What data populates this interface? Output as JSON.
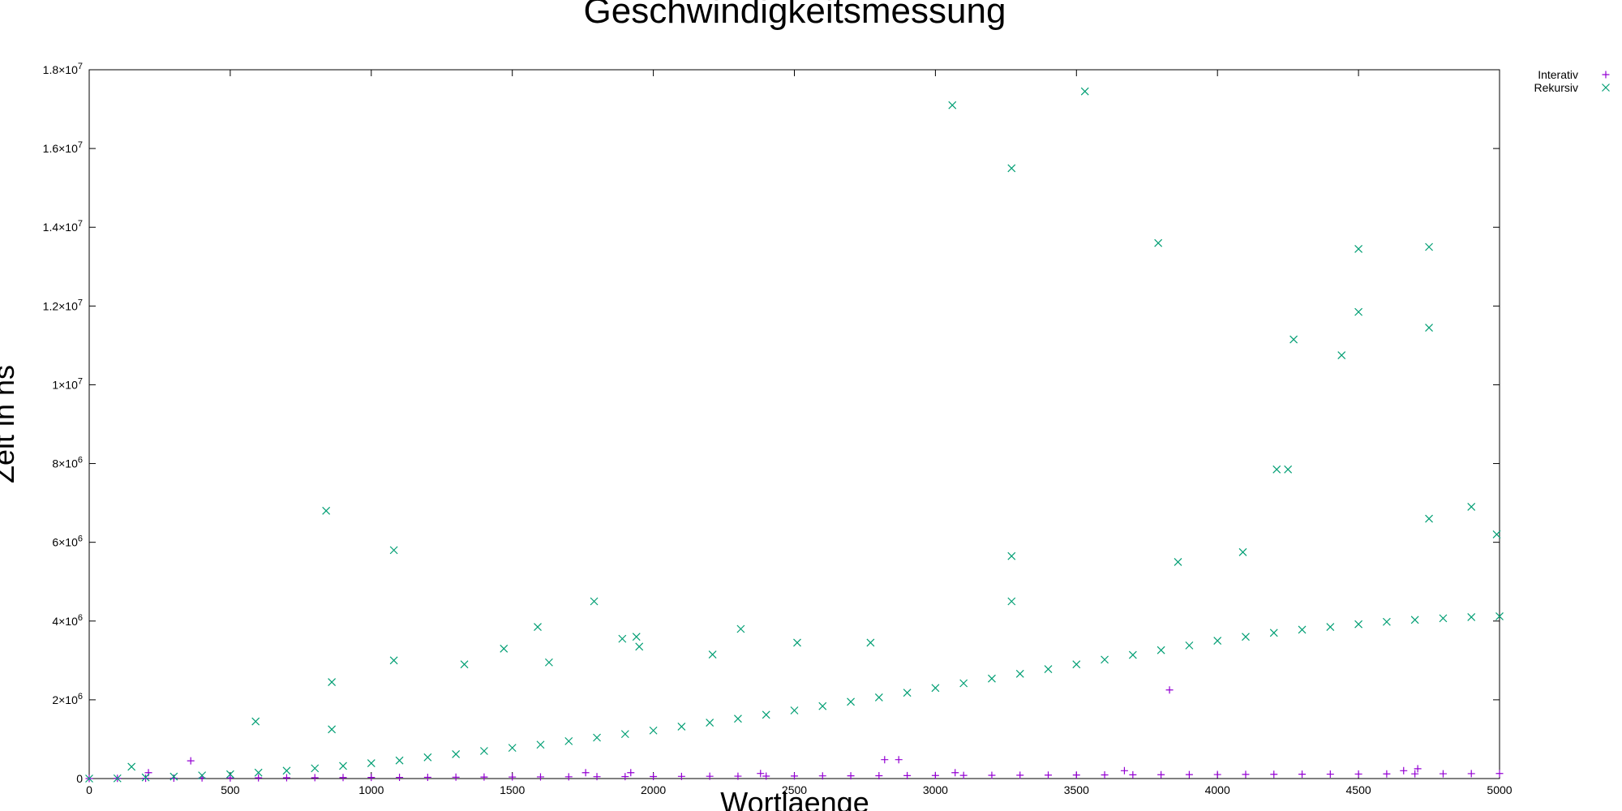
{
  "chart_data": {
    "type": "scatter",
    "title": "Geschwindigkeitsmessung",
    "xlabel": "Wortlaenge",
    "ylabel": "Zeit in ns",
    "xlim": [
      0,
      5000
    ],
    "ylim": [
      0,
      18000000
    ],
    "grid": false,
    "legend_position": "top-right-outside",
    "x_ticks": [
      {
        "value": 0,
        "label": "0"
      },
      {
        "value": 500,
        "label": "500"
      },
      {
        "value": 1000,
        "label": "1000"
      },
      {
        "value": 1500,
        "label": "1500"
      },
      {
        "value": 2000,
        "label": "2000"
      },
      {
        "value": 2500,
        "label": "2500"
      },
      {
        "value": 3000,
        "label": "3000"
      },
      {
        "value": 3500,
        "label": "3500"
      },
      {
        "value": 4000,
        "label": "4000"
      },
      {
        "value": 4500,
        "label": "4500"
      },
      {
        "value": 5000,
        "label": "5000"
      }
    ],
    "y_ticks": [
      {
        "value": 0,
        "mant": "0",
        "exp": ""
      },
      {
        "value": 2000000,
        "mant": "2×10",
        "exp": "6"
      },
      {
        "value": 4000000,
        "mant": "4×10",
        "exp": "6"
      },
      {
        "value": 6000000,
        "mant": "6×10",
        "exp": "6"
      },
      {
        "value": 8000000,
        "mant": "8×10",
        "exp": "6"
      },
      {
        "value": 10000000,
        "mant": "1×10",
        "exp": "7"
      },
      {
        "value": 12000000,
        "mant": "1.2×10",
        "exp": "7"
      },
      {
        "value": 14000000,
        "mant": "1.4×10",
        "exp": "7"
      },
      {
        "value": 16000000,
        "mant": "1.6×10",
        "exp": "7"
      },
      {
        "value": 18000000,
        "mant": "1.8×10",
        "exp": "7"
      }
    ],
    "series": [
      {
        "name": "Interativ",
        "marker": "plus",
        "color": "#9400d3",
        "points": [
          [
            0,
            0
          ],
          [
            100,
            5000
          ],
          [
            200,
            8000
          ],
          [
            300,
            10000
          ],
          [
            400,
            15000
          ],
          [
            500,
            15000
          ],
          [
            600,
            18000
          ],
          [
            700,
            20000
          ],
          [
            800,
            22000
          ],
          [
            900,
            25000
          ],
          [
            1000,
            28000
          ],
          [
            1100,
            30000
          ],
          [
            1200,
            32000
          ],
          [
            1300,
            35000
          ],
          [
            1400,
            38000
          ],
          [
            1500,
            40000
          ],
          [
            1600,
            42000
          ],
          [
            1700,
            45000
          ],
          [
            1800,
            48000
          ],
          [
            1900,
            50000
          ],
          [
            2000,
            52000
          ],
          [
            2100,
            55000
          ],
          [
            2200,
            58000
          ],
          [
            2300,
            60000
          ],
          [
            2400,
            62000
          ],
          [
            2500,
            65000
          ],
          [
            2600,
            68000
          ],
          [
            2700,
            70000
          ],
          [
            2800,
            72000
          ],
          [
            2900,
            75000
          ],
          [
            3000,
            78000
          ],
          [
            3100,
            80000
          ],
          [
            3200,
            82000
          ],
          [
            3300,
            85000
          ],
          [
            3400,
            88000
          ],
          [
            3500,
            90000
          ],
          [
            3600,
            92000
          ],
          [
            3700,
            95000
          ],
          [
            3800,
            98000
          ],
          [
            3900,
            100000
          ],
          [
            4000,
            102000
          ],
          [
            4100,
            105000
          ],
          [
            4200,
            108000
          ],
          [
            4300,
            110000
          ],
          [
            4400,
            112000
          ],
          [
            4500,
            115000
          ],
          [
            4600,
            118000
          ],
          [
            4700,
            120000
          ],
          [
            4800,
            122000
          ],
          [
            4900,
            125000
          ],
          [
            5000,
            128000
          ],
          [
            360,
            450000
          ],
          [
            210,
            150000
          ],
          [
            1760,
            150000
          ],
          [
            1920,
            150000
          ],
          [
            2380,
            130000
          ],
          [
            2820,
            480000
          ],
          [
            2870,
            480000
          ],
          [
            3070,
            150000
          ],
          [
            3670,
            200000
          ],
          [
            3830,
            2250000
          ],
          [
            4660,
            200000
          ],
          [
            4710,
            250000
          ]
        ]
      },
      {
        "name": "Rekursiv",
        "marker": "cross",
        "color": "#009e73",
        "points": [
          [
            0,
            0
          ],
          [
            100,
            5000
          ],
          [
            200,
            30000
          ],
          [
            300,
            50000
          ],
          [
            400,
            80000
          ],
          [
            500,
            110000
          ],
          [
            600,
            150000
          ],
          [
            700,
            200000
          ],
          [
            800,
            260000
          ],
          [
            900,
            320000
          ],
          [
            1000,
            390000
          ],
          [
            1100,
            460000
          ],
          [
            1200,
            540000
          ],
          [
            1300,
            620000
          ],
          [
            1400,
            700000
          ],
          [
            1500,
            780000
          ],
          [
            1600,
            860000
          ],
          [
            1700,
            950000
          ],
          [
            1800,
            1040000
          ],
          [
            1900,
            1130000
          ],
          [
            2000,
            1220000
          ],
          [
            2100,
            1320000
          ],
          [
            2200,
            1420000
          ],
          [
            2300,
            1520000
          ],
          [
            2400,
            1620000
          ],
          [
            2500,
            1730000
          ],
          [
            2600,
            1840000
          ],
          [
            2700,
            1950000
          ],
          [
            2800,
            2060000
          ],
          [
            2900,
            2180000
          ],
          [
            3000,
            2300000
          ],
          [
            3100,
            2420000
          ],
          [
            3200,
            2540000
          ],
          [
            3300,
            2660000
          ],
          [
            3400,
            2780000
          ],
          [
            3500,
            2900000
          ],
          [
            3600,
            3020000
          ],
          [
            3700,
            3140000
          ],
          [
            3800,
            3260000
          ],
          [
            3900,
            3380000
          ],
          [
            4000,
            3500000
          ],
          [
            4100,
            3600000
          ],
          [
            4200,
            3700000
          ],
          [
            4300,
            3780000
          ],
          [
            4400,
            3850000
          ],
          [
            4500,
            3920000
          ],
          [
            4600,
            3980000
          ],
          [
            4700,
            4030000
          ],
          [
            4800,
            4070000
          ],
          [
            4900,
            4100000
          ],
          [
            5000,
            4120000
          ],
          [
            150,
            300000
          ],
          [
            590,
            1450000
          ],
          [
            840,
            6800000
          ],
          [
            860,
            2450000
          ],
          [
            860,
            1250000
          ],
          [
            1080,
            5800000
          ],
          [
            1080,
            3000000
          ],
          [
            1330,
            2900000
          ],
          [
            1470,
            3300000
          ],
          [
            1590,
            3850000
          ],
          [
            1630,
            2950000
          ],
          [
            1790,
            4500000
          ],
          [
            1890,
            3550000
          ],
          [
            1940,
            3600000
          ],
          [
            1950,
            3350000
          ],
          [
            2210,
            3150000
          ],
          [
            2310,
            3800000
          ],
          [
            2510,
            3450000
          ],
          [
            2770,
            3450000
          ],
          [
            3060,
            17100000
          ],
          [
            3270,
            15500000
          ],
          [
            3270,
            5650000
          ],
          [
            3270,
            4500000
          ],
          [
            3530,
            17450000
          ],
          [
            3790,
            13600000
          ],
          [
            3860,
            5500000
          ],
          [
            4090,
            5750000
          ],
          [
            4210,
            7850000
          ],
          [
            4250,
            7850000
          ],
          [
            4270,
            11150000
          ],
          [
            4440,
            10750000
          ],
          [
            4500,
            13450000
          ],
          [
            4500,
            11850000
          ],
          [
            4750,
            13500000
          ],
          [
            4750,
            11450000
          ],
          [
            4750,
            6600000
          ],
          [
            4900,
            6900000
          ],
          [
            4990,
            6200000
          ]
        ]
      }
    ]
  }
}
